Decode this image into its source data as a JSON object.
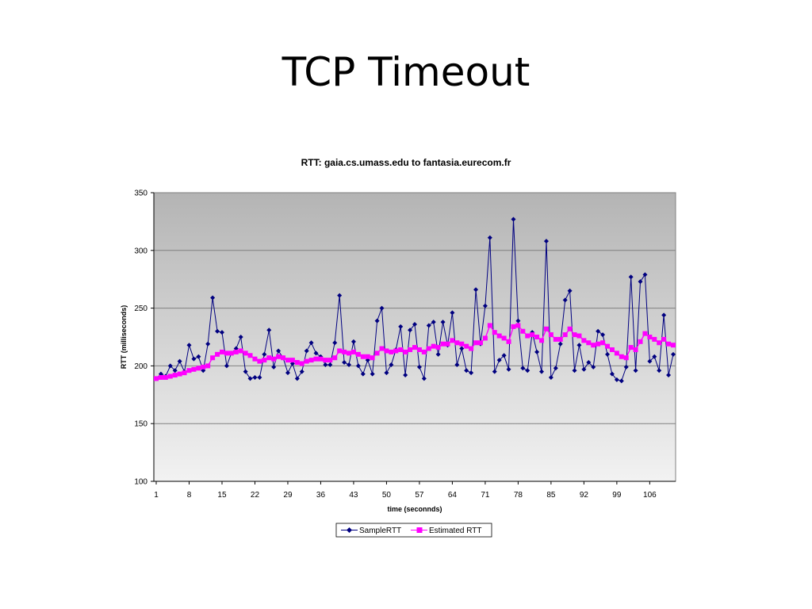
{
  "slide": {
    "title": "TCP Timeout"
  },
  "chart_data": {
    "type": "line",
    "title": "RTT: gaia.cs.umass.edu to fantasia.eurecom.fr",
    "xlabel": "time (seconnds)",
    "ylabel": "RTT (milliseconds)",
    "ylim": [
      100,
      350
    ],
    "yticks": [
      100,
      150,
      200,
      250,
      300,
      350
    ],
    "xticks": [
      1,
      8,
      15,
      22,
      29,
      36,
      43,
      50,
      57,
      64,
      71,
      78,
      85,
      92,
      99,
      106
    ],
    "x": [
      1,
      2,
      3,
      4,
      5,
      6,
      7,
      8,
      9,
      10,
      11,
      12,
      13,
      14,
      15,
      16,
      17,
      18,
      19,
      20,
      21,
      22,
      23,
      24,
      25,
      26,
      27,
      28,
      29,
      30,
      31,
      32,
      33,
      34,
      35,
      36,
      37,
      38,
      39,
      40,
      41,
      42,
      43,
      44,
      45,
      46,
      47,
      48,
      49,
      50,
      51,
      52,
      53,
      54,
      55,
      56,
      57,
      58,
      59,
      60,
      61,
      62,
      63,
      64,
      65,
      66,
      67,
      68,
      69,
      70,
      71,
      72,
      73,
      74,
      75,
      76,
      77,
      78,
      79,
      80,
      81,
      82,
      83,
      84,
      85,
      86,
      87,
      88,
      89,
      90,
      91,
      92,
      93,
      94,
      95,
      96,
      97,
      98,
      99,
      100,
      101,
      102,
      103,
      104,
      105,
      106,
      107,
      108,
      109,
      110,
      111
    ],
    "grid": true,
    "legend_position": "bottom",
    "series": [
      {
        "name": "SampleRTT",
        "color": "#000080",
        "marker": "diamond",
        "values": [
          189,
          193,
          191,
          200,
          196,
          204,
          195,
          218,
          206,
          208,
          196,
          219,
          259,
          230,
          229,
          200,
          211,
          215,
          225,
          195,
          189,
          190,
          190,
          210,
          231,
          199,
          213,
          207,
          194,
          202,
          189,
          195,
          213,
          220,
          211,
          208,
          201,
          201,
          220,
          261,
          203,
          201,
          221,
          200,
          193,
          205,
          193,
          239,
          250,
          194,
          201,
          214,
          234,
          192,
          231,
          236,
          199,
          189,
          235,
          238,
          210,
          238,
          218,
          246,
          201,
          215,
          196,
          194,
          266,
          219,
          252,
          311,
          195,
          205,
          209,
          197,
          327,
          239,
          198,
          196,
          229,
          212,
          195,
          308,
          190,
          198,
          219,
          257,
          265,
          196,
          218,
          197,
          203,
          199,
          230,
          227,
          210,
          193,
          188,
          187,
          199,
          277,
          196,
          273,
          279,
          204,
          208,
          196,
          244,
          192,
          210
        ]
      },
      {
        "name": "Estimated RTT",
        "color": "#ff00ff",
        "marker": "square",
        "values": [
          189,
          190,
          190,
          191,
          192,
          193,
          194,
          196,
          197,
          198,
          199,
          200,
          207,
          210,
          212,
          211,
          211,
          212,
          213,
          211,
          209,
          206,
          204,
          205,
          207,
          206,
          208,
          207,
          205,
          205,
          203,
          202,
          204,
          205,
          206,
          206,
          205,
          205,
          207,
          213,
          212,
          211,
          212,
          210,
          208,
          208,
          207,
          211,
          215,
          213,
          212,
          213,
          214,
          212,
          214,
          216,
          214,
          212,
          215,
          217,
          216,
          219,
          219,
          222,
          220,
          219,
          217,
          215,
          220,
          220,
          224,
          235,
          229,
          226,
          224,
          221,
          234,
          235,
          230,
          226,
          227,
          225,
          222,
          232,
          227,
          223,
          223,
          227,
          232,
          227,
          226,
          222,
          220,
          218,
          219,
          220,
          217,
          214,
          211,
          208,
          207,
          216,
          214,
          221,
          228,
          225,
          223,
          220,
          223,
          219,
          218
        ]
      }
    ]
  }
}
